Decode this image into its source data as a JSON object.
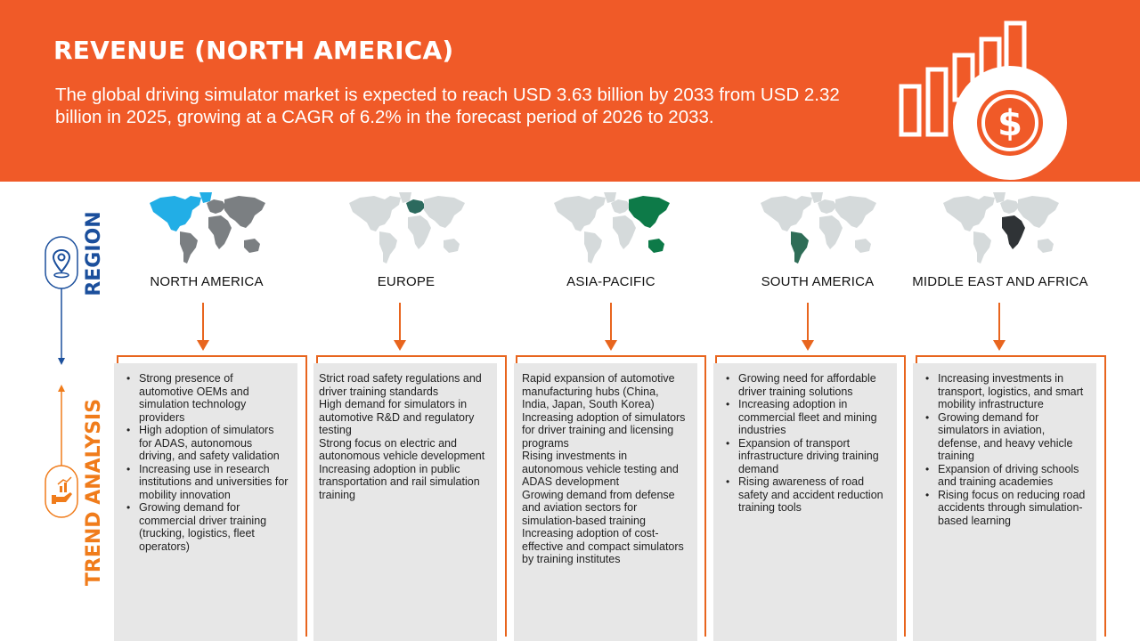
{
  "header": {
    "title": "REVENUE (NORTH AMERICA)",
    "description": "The global driving simulator market is expected to reach USD 3.63 billion by 2033 from USD 2.32 billion in 2025, growing at a CAGR of 6.2% in the forecast period of 2026 to 2033.",
    "icon": "revenue-growth-dollar-icon"
  },
  "side": {
    "region_label": "REGION",
    "trend_label": "TREND ANALYSIS",
    "region_icon": "location-pin-icon",
    "trend_icon": "trend-hand-icon"
  },
  "colors": {
    "banner": "#f05a28",
    "accent_orange": "#e8651e",
    "region_blue": "#1b4f9c",
    "trend_orange": "#f07c1b",
    "card_bg": "#e7e7e7",
    "map_base": "#d5dadb",
    "map_dark": "#7b7f82"
  },
  "regions": [
    {
      "name": "NORTH AMERICA",
      "highlight_color": "#22aee6",
      "bullets": true,
      "trends": [
        "Strong presence of automotive OEMs and simulation technology providers",
        "High adoption of simulators for ADAS, autonomous driving, and safety validation",
        "Increasing use in research institutions and universities for mobility innovation",
        "Growing demand for commercial driver training (trucking, logistics, fleet operators)"
      ]
    },
    {
      "name": "EUROPE",
      "highlight_color": "#2c6a5e",
      "bullets": false,
      "trends": [
        "Strict road safety regulations and driver training standards",
        "High demand for simulators in automotive R&D and regulatory testing",
        "Strong focus on electric and autonomous vehicle development",
        "Increasing adoption in public transportation and rail simulation training"
      ]
    },
    {
      "name": "ASIA-PACIFIC",
      "highlight_color": "#0d7a48",
      "bullets": false,
      "trends": [
        "Rapid expansion of automotive manufacturing hubs (China, India, Japan, South Korea)",
        "Increasing adoption of simulators for driver training and licensing programs",
        "Rising investments in autonomous vehicle testing and ADAS development",
        "Growing demand from defense and aviation sectors for simulation-based training",
        "Increasing adoption of cost-effective and compact simulators by training institutes"
      ]
    },
    {
      "name": "SOUTH AMERICA",
      "highlight_color": "#2f6d57",
      "bullets": true,
      "trends": [
        "Growing need for affordable driver training solutions",
        "Increasing adoption in commercial fleet and mining industries",
        "Expansion of transport infrastructure driving training demand",
        "Rising awareness of road safety and accident reduction training tools"
      ]
    },
    {
      "name": "MIDDLE EAST AND AFRICA",
      "highlight_color": "#2f3336",
      "bullets": true,
      "trends": [
        "Increasing investments in transport, logistics, and smart mobility infrastructure",
        "Growing demand for simulators in aviation, defense, and heavy vehicle training",
        "Expansion of driving schools and training academies",
        "Rising focus on reducing road accidents through simulation-based learning"
      ]
    }
  ]
}
